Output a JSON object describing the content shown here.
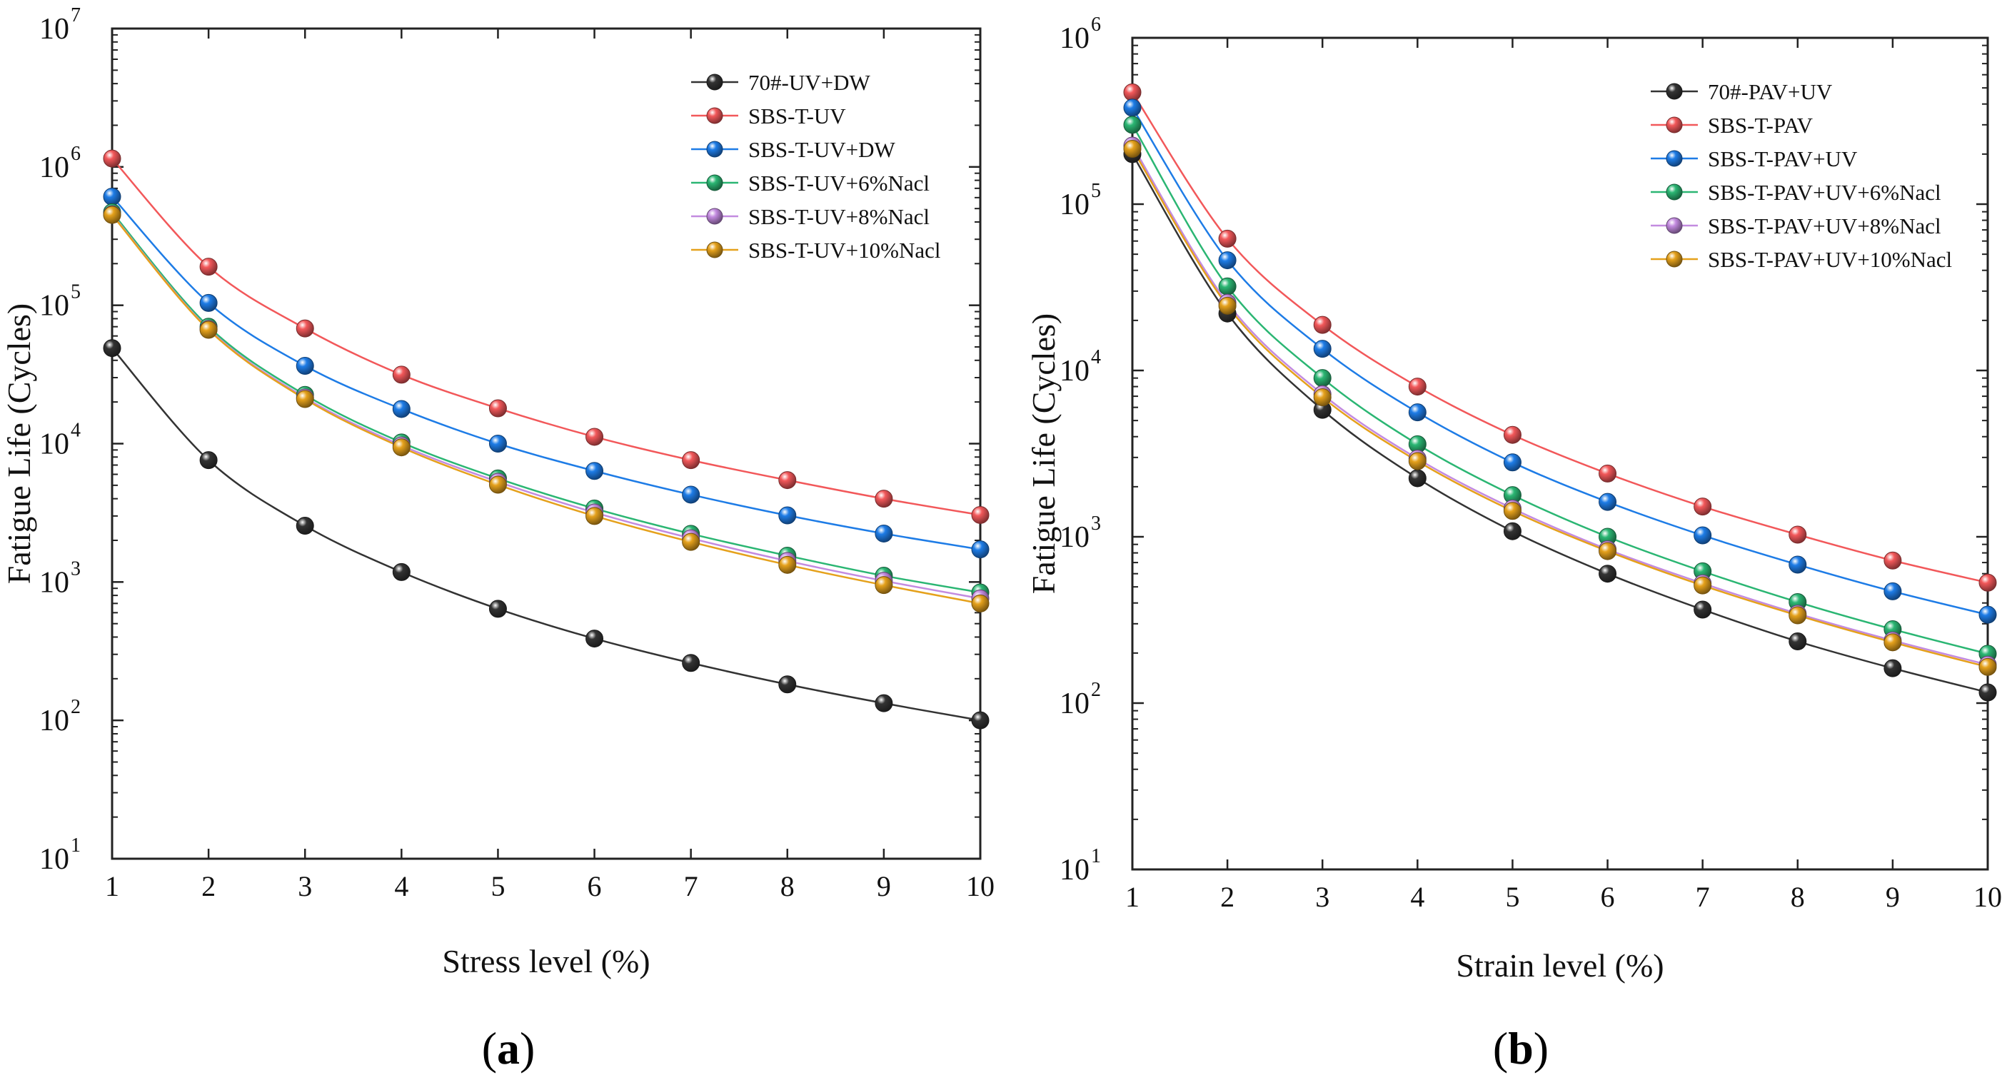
{
  "chart_data": [
    {
      "type": "line",
      "panel_label": "a",
      "xlabel": "Stress level (%)",
      "ylabel": "Fatigue Life (Cycles)",
      "yscale": "log",
      "xlim": [
        1,
        10
      ],
      "ylim": [
        10,
        10000000
      ],
      "x_ticks": [
        1,
        2,
        3,
        4,
        5,
        6,
        7,
        8,
        9,
        10
      ],
      "y_ticks": [
        10,
        100,
        1000,
        10000,
        100000,
        1000000,
        10000000
      ],
      "y_tick_exponents": [
        "1",
        "2",
        "3",
        "4",
        "5",
        "6",
        "7"
      ],
      "y_tick_base": "10",
      "legend_position": "top-right",
      "x": [
        1,
        2,
        3,
        4,
        5,
        6,
        7,
        8,
        9,
        10
      ],
      "series": [
        {
          "name": "70#-UV+DW",
          "color": "#333333",
          "values": [
            49000,
            7600,
            2550,
            1180,
            640,
            390,
            260,
            182,
            133,
            100
          ]
        },
        {
          "name": "SBS-T-UV",
          "color": "#f2585a",
          "values": [
            1150000,
            190000,
            68000,
            31500,
            18000,
            11200,
            7600,
            5450,
            4000,
            3050
          ]
        },
        {
          "name": "SBS-T-UV+DW",
          "color": "#1e7ce6",
          "values": [
            610000,
            104000,
            36500,
            17800,
            10000,
            6350,
            4280,
            3030,
            2240,
            1720
          ]
        },
        {
          "name": "SBS-T-UV+6%Nacl",
          "color": "#2bb673",
          "values": [
            470000,
            70000,
            22500,
            10200,
            5600,
            3400,
            2230,
            1550,
            1110,
            840
          ]
        },
        {
          "name": "SBS-T-UV+8%Nacl",
          "color": "#c38be0",
          "values": [
            455000,
            67500,
            21500,
            9700,
            5300,
            3180,
            2070,
            1420,
            1020,
            760
          ]
        },
        {
          "name": "SBS-T-UV+10%Nacl",
          "color": "#e5a11c",
          "values": [
            450000,
            66500,
            21000,
            9400,
            5050,
            3000,
            1950,
            1330,
            950,
            700
          ]
        }
      ]
    },
    {
      "type": "line",
      "panel_label": "b",
      "xlabel": "Strain level (%)",
      "ylabel": "Fatigue Life (Cycles)",
      "yscale": "log",
      "xlim": [
        1,
        10
      ],
      "ylim": [
        10,
        1000000
      ],
      "x_ticks": [
        1,
        2,
        3,
        4,
        5,
        6,
        7,
        8,
        9,
        10
      ],
      "y_ticks": [
        10,
        100,
        1000,
        10000,
        100000,
        1000000
      ],
      "y_tick_exponents": [
        "1",
        "2",
        "3",
        "4",
        "5",
        "6"
      ],
      "y_tick_base": "10",
      "legend_position": "top-right",
      "x": [
        1,
        2,
        3,
        4,
        5,
        6,
        7,
        8,
        9,
        10
      ],
      "series": [
        {
          "name": "70#-PAV+UV",
          "color": "#333333",
          "values": [
            200000,
            22000,
            5800,
            2250,
            1080,
            600,
            365,
            235,
            162,
            116
          ]
        },
        {
          "name": "SBS-T-PAV",
          "color": "#f2585a",
          "values": [
            470000,
            62000,
            18800,
            8000,
            4100,
            2400,
            1520,
            1030,
            720,
            530
          ]
        },
        {
          "name": "SBS-T-PAV+UV",
          "color": "#1e7ce6",
          "values": [
            380000,
            46000,
            13500,
            5600,
            2800,
            1620,
            1020,
            680,
            470,
            340
          ]
        },
        {
          "name": "SBS-T-PAV+UV+6%Nacl",
          "color": "#2bb673",
          "values": [
            300000,
            32000,
            9000,
            3600,
            1780,
            1000,
            620,
            405,
            278,
            198
          ]
        },
        {
          "name": "SBS-T-PAV+UV+8%Nacl",
          "color": "#c38be0",
          "values": [
            225000,
            25500,
            7200,
            2950,
            1480,
            840,
            525,
            345,
            238,
            170
          ]
        },
        {
          "name": "SBS-T-PAV+UV+10%Nacl",
          "color": "#e5a11c",
          "values": [
            215000,
            24500,
            6900,
            2850,
            1430,
            820,
            510,
            337,
            232,
            165
          ]
        }
      ]
    }
  ]
}
